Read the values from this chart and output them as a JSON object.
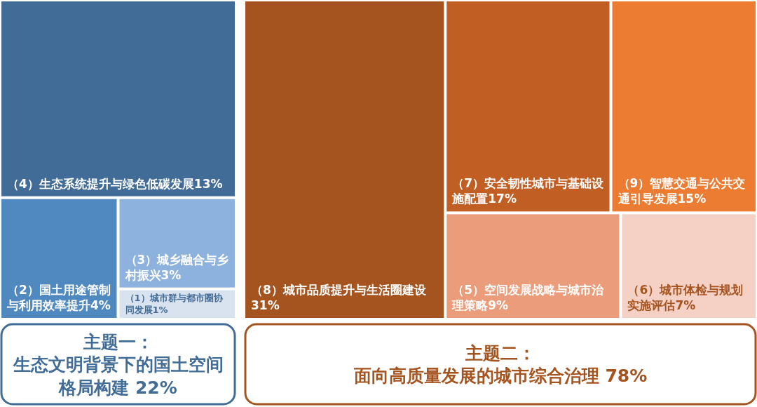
{
  "chart_data": {
    "type": "other",
    "categories": [
      "（4）生态系统提升与绿色低碳发展",
      "（2）国土用途管制与利用效率提升",
      "（3）城乡融合与乡村振兴",
      "（1）城市群与都市圈协同发展",
      "（8）城市品质提升与生活圈建设",
      "（7）安全韧性城市与基础设施配置",
      "（9）智慧交通与公共交通引导发展",
      "（5）空间发展战略与城市治理策略",
      "（6）城市体检与规划实施评估"
    ],
    "values": [
      13,
      4,
      3,
      1,
      31,
      17,
      15,
      9,
      7
    ],
    "value_labels": [
      "13%",
      "4%",
      "3%",
      "1%",
      "31%",
      "17%",
      "15%",
      "9%",
      "7%"
    ],
    "colors": [
      "#416c97",
      "#5089c0",
      "#8db2de",
      "#d9e3f0",
      "#a5541f",
      "#c15e23",
      "#ec7c32",
      "#eb9d7b",
      "#f5d0c5"
    ],
    "annotations": [
      "主题一：",
      "生态文明背景下的国土空间格局构建 22%",
      "主题二：",
      "面向高质量发展的城市综合治理 78%"
    ]
  }
}
